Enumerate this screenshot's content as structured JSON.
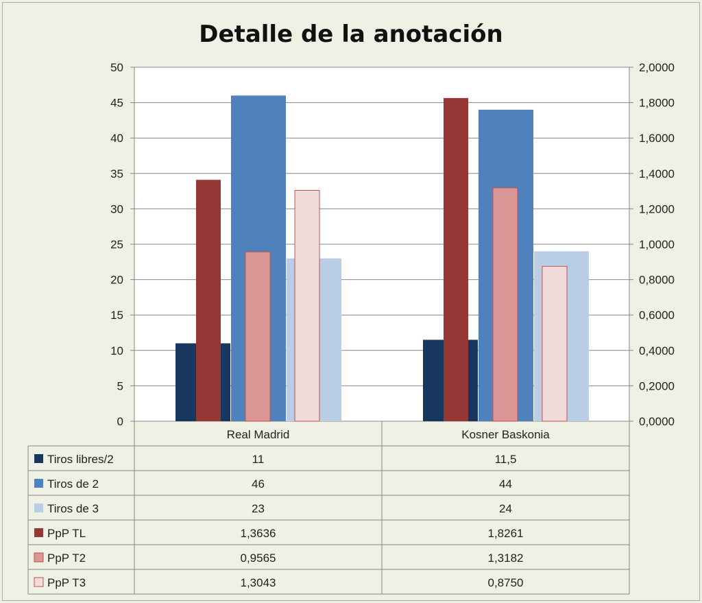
{
  "chart_data": {
    "type": "bar",
    "title": "Detalle de la anotación",
    "categories": [
      "Real Madrid",
      "Kosner Baskonia"
    ],
    "y_left": {
      "ylim": [
        0,
        50
      ],
      "ticks": [
        "0",
        "5",
        "10",
        "15",
        "20",
        "25",
        "30",
        "35",
        "40",
        "45",
        "50"
      ]
    },
    "y_right": {
      "ylim": [
        0,
        2
      ],
      "ticks": [
        "0,0000",
        "0,2000",
        "0,4000",
        "0,6000",
        "0,8000",
        "1,0000",
        "1,2000",
        "1,4000",
        "1,6000",
        "1,8000",
        "2,0000"
      ]
    },
    "grid": true,
    "legend": "data-table",
    "series": [
      {
        "name": "Tiros libres/2",
        "axis": "left",
        "values": [
          11,
          11.5
        ],
        "labels": [
          "11",
          "11,5"
        ],
        "color": "#17375e"
      },
      {
        "name": "Tiros de 2",
        "axis": "left",
        "values": [
          46,
          44
        ],
        "labels": [
          "46",
          "44"
        ],
        "color": "#4f81bd"
      },
      {
        "name": "Tiros de 3",
        "axis": "left",
        "values": [
          23,
          24
        ],
        "labels": [
          "23",
          "24"
        ],
        "color": "#b9cde5"
      },
      {
        "name": "PpP TL",
        "axis": "right",
        "values": [
          1.3636,
          1.8261
        ],
        "labels": [
          "1,3636",
          "1,8261"
        ],
        "color": "#953735"
      },
      {
        "name": "PpP T2",
        "axis": "right",
        "values": [
          0.9565,
          1.3182
        ],
        "labels": [
          "0,9565",
          "1,3182"
        ],
        "color": "#d99694"
      },
      {
        "name": "PpP T3",
        "axis": "right",
        "values": [
          1.3043,
          0.875
        ],
        "labels": [
          "1,3043",
          "0,8750"
        ],
        "color": "#f2dcdb"
      }
    ]
  }
}
